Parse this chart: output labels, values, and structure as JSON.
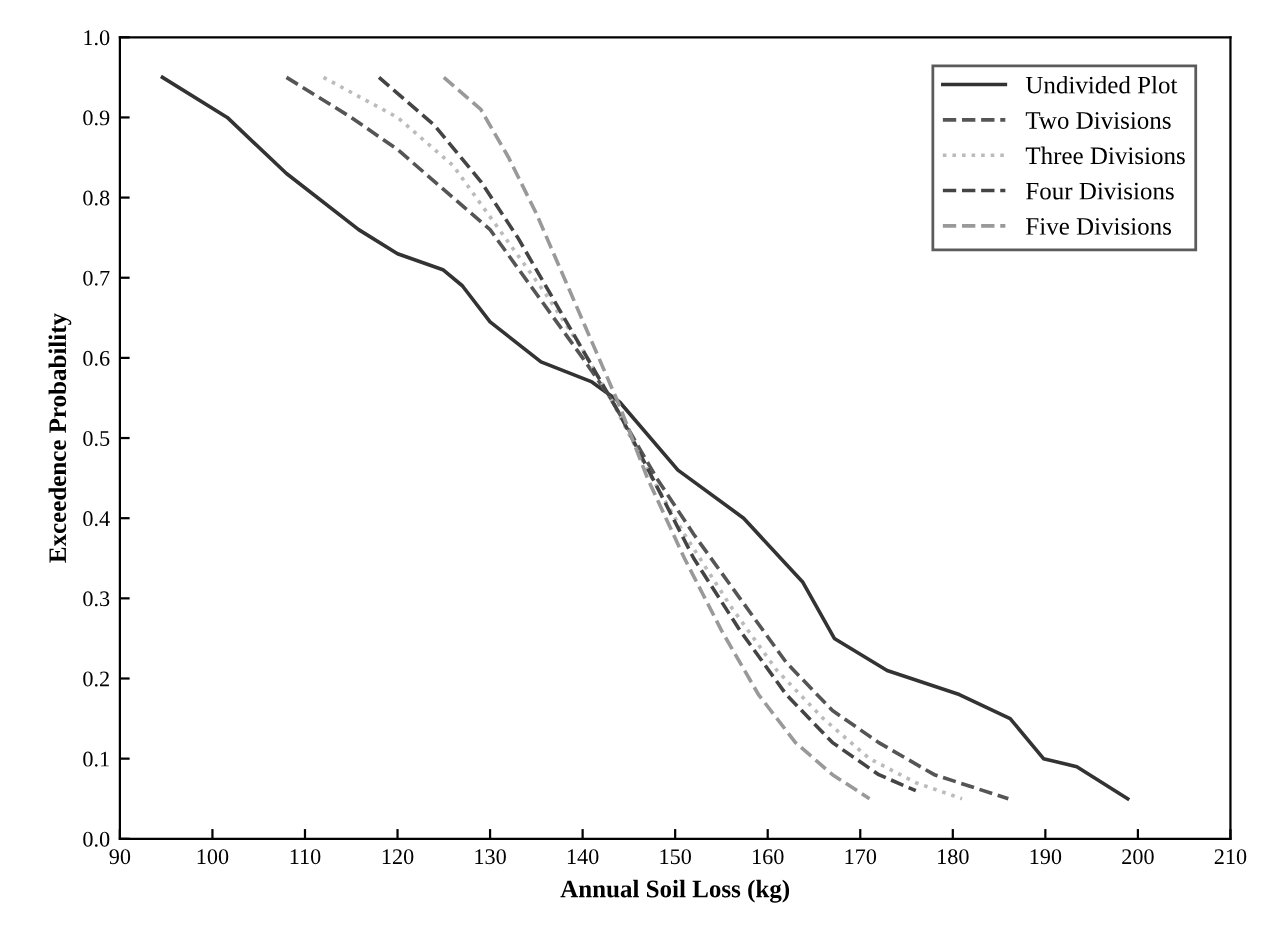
{
  "chart_data": {
    "type": "line",
    "xlabel": "Annual Soil Loss (kg)",
    "ylabel": "Exceedence Probability",
    "xlim": [
      90,
      210
    ],
    "xticks": [
      90,
      100,
      110,
      120,
      130,
      140,
      150,
      160,
      170,
      180,
      190,
      200,
      210
    ],
    "ylim": [
      0,
      1
    ],
    "yticks": [
      {
        "value": 0,
        "label": "0.0"
      },
      {
        "value": 0.1,
        "label": "0.1"
      },
      {
        "value": 0.2,
        "label": "0.2"
      },
      {
        "value": 0.3,
        "label": "0.3"
      },
      {
        "value": 0.4,
        "label": "0.4"
      },
      {
        "value": 0.5,
        "label": "0.5"
      },
      {
        "value": 0.6,
        "label": "0.6"
      },
      {
        "value": 0.7,
        "label": "0.7"
      },
      {
        "value": 0.8,
        "label": "0.8"
      },
      {
        "value": 0.9,
        "label": "0.9"
      },
      {
        "value": 1,
        "label": "1.0"
      }
    ],
    "grid": false,
    "legend": "top right",
    "marker": "none",
    "series": [
      {
        "name": "Undivided Plot",
        "color": "#333333",
        "line_style": "solid",
        "x": [
          94.6,
          101.6,
          108,
          115.8,
          120,
          124.9,
          127,
          130,
          135.5,
          141,
          144,
          150.3,
          157.4,
          163.8,
          167.2,
          172.9,
          180.7,
          186.2,
          189.8,
          193.4,
          198.9
        ],
        "values": [
          0.95,
          0.9,
          0.83,
          0.76,
          0.73,
          0.71,
          0.69,
          0.645,
          0.595,
          0.57,
          0.545,
          0.46,
          0.4,
          0.32,
          0.25,
          0.21,
          0.18,
          0.15,
          0.1,
          0.09,
          0.05
        ]
      },
      {
        "name": "Two Divisions",
        "color": "#555555",
        "line_style": "dashed",
        "x": [
          108,
          115,
          120,
          125,
          130,
          135,
          140,
          143,
          148,
          152,
          157,
          162,
          167,
          172,
          178,
          186
        ],
        "values": [
          0.95,
          0.9,
          0.86,
          0.81,
          0.76,
          0.68,
          0.6,
          0.55,
          0.45,
          0.38,
          0.3,
          0.22,
          0.16,
          0.12,
          0.08,
          0.05
        ]
      },
      {
        "name": "Three Divisions",
        "color": "#bbbbbb",
        "line_style": "dotted",
        "x": [
          112,
          120,
          126,
          131,
          136,
          140,
          143,
          147,
          151,
          156,
          161,
          166,
          171,
          176,
          181
        ],
        "values": [
          0.95,
          0.9,
          0.84,
          0.76,
          0.68,
          0.61,
          0.55,
          0.46,
          0.38,
          0.29,
          0.21,
          0.15,
          0.1,
          0.07,
          0.05
        ]
      },
      {
        "name": "Four Divisions",
        "color": "#444444",
        "line_style": "dashed",
        "x": [
          118,
          124,
          129,
          133,
          137,
          141,
          144,
          148,
          152,
          157,
          162,
          167,
          172,
          176
        ],
        "values": [
          0.95,
          0.89,
          0.82,
          0.75,
          0.67,
          0.59,
          0.53,
          0.44,
          0.35,
          0.26,
          0.18,
          0.12,
          0.08,
          0.06
        ]
      },
      {
        "name": "Five Divisions",
        "color": "#999999",
        "line_style": "dashed",
        "x": [
          125,
          129,
          132,
          135,
          138,
          141,
          144,
          147,
          151,
          155,
          159,
          163,
          167,
          171
        ],
        "values": [
          0.95,
          0.91,
          0.85,
          0.78,
          0.7,
          0.62,
          0.54,
          0.45,
          0.35,
          0.26,
          0.18,
          0.12,
          0.08,
          0.05
        ]
      }
    ]
  }
}
